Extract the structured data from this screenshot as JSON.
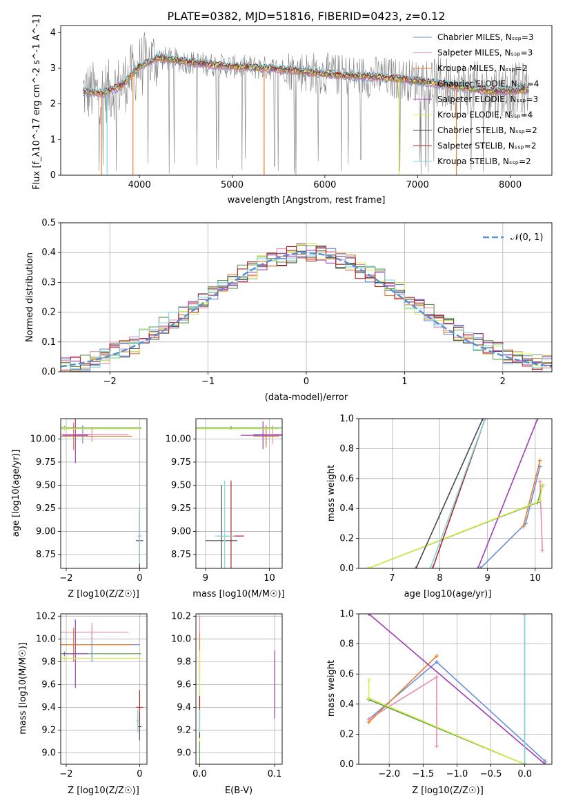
{
  "chart_data": [
    {
      "type": "line",
      "title": "PLATE=0382, MJD=51816, FIBERID=0423, z=0.12",
      "xlabel": "wavelength [Angstrom, rest frame]",
      "ylabel": "Flux [f_λ10^-17 erg cm^-2 s^-1 A^-1]",
      "xlim": [
        3150,
        8450
      ],
      "ylim": [
        0,
        4.2
      ],
      "xticks": [
        4000,
        5000,
        6000,
        7000,
        8000
      ],
      "yticks": [
        0,
        1,
        2,
        3,
        4
      ],
      "legend_position": "right",
      "series": [
        {
          "name": "Chabrier MILES, N_SSP=3",
          "color": "#6a8fd8"
        },
        {
          "name": "Salpeter MILES, N_SSP=3",
          "color": "#e88bb0"
        },
        {
          "name": "Kroupa MILES, N_SSP=2",
          "color": "#e8812f"
        },
        {
          "name": "Chabrier ELODIE, N_SSP=4",
          "color": "#5c9e4e"
        },
        {
          "name": "Salpeter ELODIE, N_SSP=3",
          "color": "#9e3bb5"
        },
        {
          "name": "Kroupa ELODIE, N_SSP=4",
          "color": "#d8ee4a"
        },
        {
          "name": "Chabrier STELIB, N_SSP=2",
          "color": "#4a4a4a"
        },
        {
          "name": "Salpeter STELIB, N_SSP=2",
          "color": "#b22424"
        },
        {
          "name": "Kroupa STELIB, N_SSP=2",
          "color": "#7fd8e0"
        }
      ],
      "continuum": {
        "x": [
          3400,
          3600,
          3800,
          4000,
          4200,
          4600,
          5000,
          5400,
          5800,
          6200,
          6600,
          7000,
          7400,
          7800,
          8200
        ],
        "y": [
          2.35,
          2.3,
          2.5,
          3.05,
          3.3,
          3.15,
          3.05,
          3.0,
          2.9,
          2.8,
          2.75,
          2.65,
          2.5,
          2.35,
          2.4
        ]
      }
    },
    {
      "type": "histogram",
      "xlabel": "(data-model)/error",
      "ylabel": "Normed distribution",
      "xlim": [
        -2.5,
        2.5
      ],
      "ylim": [
        0,
        0.5
      ],
      "xticks": [
        -2,
        -1,
        0,
        1,
        2
      ],
      "yticks": [
        0,
        0.1,
        0.2,
        0.3,
        0.4,
        0.5
      ],
      "legend": "𝒩(0, 1)",
      "bin_width": 0.1,
      "values_approx": [
        0.02,
        0.025,
        0.03,
        0.035,
        0.04,
        0.05,
        0.055,
        0.07,
        0.075,
        0.09,
        0.1,
        0.115,
        0.13,
        0.14,
        0.155,
        0.175,
        0.19,
        0.205,
        0.215,
        0.235,
        0.255,
        0.27,
        0.29,
        0.3,
        0.315,
        0.33,
        0.34,
        0.355,
        0.365,
        0.375,
        0.385,
        0.39,
        0.395,
        0.4,
        0.4,
        0.4,
        0.395,
        0.39,
        0.385,
        0.375,
        0.365,
        0.355,
        0.34,
        0.33,
        0.315,
        0.3,
        0.285,
        0.27,
        0.255,
        0.235,
        0.215,
        0.2,
        0.185,
        0.17,
        0.155,
        0.14,
        0.13,
        0.115,
        0.1,
        0.09,
        0.08,
        0.07,
        0.06,
        0.05,
        0.045,
        0.04,
        0.035,
        0.03,
        0.028,
        0.025
      ]
    },
    {
      "type": "scatter",
      "xlabel": "Z [log10(Z/Z☉)]",
      "ylabel": "age  [log10(age/yr)]",
      "xlim": [
        -2.15,
        0.2
      ],
      "ylim": [
        8.6,
        10.22
      ],
      "xticks": [
        -2,
        0
      ],
      "yticks": [
        8.75,
        9.0,
        9.25,
        9.5,
        9.75,
        10.0
      ]
    },
    {
      "type": "scatter",
      "xlabel": "mass [log10(M/M☉)]",
      "ylabel": "",
      "xlim": [
        8.85,
        10.2
      ],
      "ylim": [
        8.6,
        10.22
      ],
      "xticks": [
        9,
        10
      ],
      "yticks": [
        8.75,
        9.0,
        9.25,
        9.5,
        9.75,
        10.0
      ]
    },
    {
      "type": "line",
      "xlabel": "age  [log10(age/yr)]",
      "ylabel": "mass weight",
      "xlim": [
        6.3,
        10.35
      ],
      "ylim": [
        0,
        1
      ],
      "xticks": [
        7,
        8,
        9,
        10
      ],
      "yticks": [
        0.0,
        0.2,
        0.4,
        0.6,
        0.8,
        1.0
      ]
    },
    {
      "type": "scatter",
      "xlabel": "Z [log10(Z/Z☉)]",
      "ylabel": "mass [log10(M/M☉)]",
      "xlim": [
        -2.15,
        0.2
      ],
      "ylim": [
        8.9,
        10.22
      ],
      "xticks": [
        -2,
        0
      ],
      "yticks": [
        9.0,
        9.2,
        9.4,
        9.6,
        9.8,
        10.0,
        10.2
      ]
    },
    {
      "type": "scatter",
      "xlabel": "E(B-V)",
      "ylabel": "",
      "xlim": [
        -0.005,
        0.11
      ],
      "ylim": [
        8.9,
        10.22
      ],
      "xticks": [
        0.0,
        0.1
      ],
      "yticks": [
        9.0,
        9.2,
        9.4,
        9.6,
        9.8,
        10.0,
        10.2
      ]
    },
    {
      "type": "line",
      "xlabel": "Z [log10(Z/Z☉)]",
      "ylabel": "mass weight",
      "xlim": [
        -2.45,
        0.4
      ],
      "ylim": [
        0,
        1
      ],
      "xticks": [
        -2.0,
        -1.5,
        -1.0,
        -0.5,
        0.0
      ],
      "yticks": [
        0.0,
        0.2,
        0.4,
        0.6,
        0.8,
        1.0
      ]
    }
  ],
  "models": [
    {
      "color": "#6a8fd8",
      "age_w": [
        [
          8.85,
          0.0
        ],
        [
          9.8,
          0.3
        ],
        [
          10.1,
          0.68
        ]
      ],
      "Z_w": [
        [
          -2.3,
          0.3
        ],
        [
          -1.3,
          0.68
        ],
        [
          0.3,
          0.02
        ]
      ],
      "Zage": [
        [
          -1.55,
          10.05,
          0.25,
          0.1
        ]
      ],
      "massage": [
        [
          9.95,
          10.05,
          0.2,
          0.1
        ]
      ],
      "Zmass": [
        [
          -1.3,
          9.95,
          1.3,
          0.15
        ]
      ],
      "ebv": [
        [
          0.0,
          9.6,
          0.2
        ]
      ]
    },
    {
      "color": "#e88bb0",
      "age_w": [
        [
          10.1,
          0.58
        ],
        [
          10.15,
          0.12
        ]
      ],
      "Z_w": [
        [
          -2.3,
          0.3
        ],
        [
          -1.3,
          0.58
        ],
        [
          -1.3,
          0.12
        ]
      ],
      "Zage": [
        [
          -1.3,
          10.05,
          1.0,
          0.08
        ]
      ],
      "massage": [
        [
          10.05,
          10.05,
          0.15,
          0.1
        ]
      ],
      "Zmass": [
        [
          -1.3,
          10.06,
          1.0,
          0.08
        ]
      ],
      "ebv": [
        [
          0.0,
          9.9,
          0.3
        ]
      ]
    },
    {
      "color": "#e8812f",
      "age_w": [
        [
          9.75,
          0.28
        ],
        [
          10.1,
          0.72
        ]
      ],
      "Z_w": [
        [
          -2.3,
          0.28
        ],
        [
          -1.3,
          0.72
        ]
      ],
      "Zage": [
        [
          -1.8,
          10.03,
          1.6,
          0.15
        ]
      ],
      "massage": [
        [
          9.95,
          10.03,
          0.2,
          0.12
        ]
      ],
      "Zmass": [
        [
          -1.8,
          9.95,
          1.6,
          0.15
        ]
      ],
      "ebv": [
        [
          0.0,
          9.85,
          0.2
        ]
      ]
    },
    {
      "color": "#5c9e4e",
      "age_w": [
        [
          6.5,
          0.0
        ],
        [
          10.05,
          0.44
        ],
        [
          10.15,
          0.55
        ]
      ],
      "Z_w": [
        [
          -2.3,
          0.43
        ],
        [
          0.0,
          0.0
        ]
      ],
      "Zage": [
        [
          -2.05,
          10.12,
          2.1,
          0.02
        ]
      ],
      "massage": [
        [
          9.4,
          10.12,
          0.8,
          0.02
        ]
      ],
      "Zmass": [
        [
          -2.05,
          9.87,
          2.1,
          0.02
        ]
      ],
      "ebv": [
        [
          0.0,
          9.2,
          0.35
        ]
      ]
    },
    {
      "color": "#9e3bb5",
      "age_w": [
        [
          8.8,
          0.0
        ],
        [
          10.05,
          1.0
        ]
      ],
      "Z_w": [
        [
          -2.3,
          1.0
        ],
        [
          0.3,
          0.0
        ]
      ],
      "Zage": [
        [
          -1.75,
          10.04,
          0.35,
          0.3
        ]
      ],
      "massage": [
        [
          9.9,
          10.04,
          0.35,
          0.15
        ]
      ],
      "Zmass": [
        [
          -1.75,
          9.87,
          0.35,
          0.3
        ]
      ],
      "ebv": [
        [
          0.1,
          9.6,
          0.3
        ]
      ]
    },
    {
      "color": "#d8ee4a",
      "age_w": [
        [
          6.5,
          0.0
        ],
        [
          10.1,
          0.45
        ],
        [
          10.15,
          0.56
        ]
      ],
      "Z_w": [
        [
          -2.3,
          0.56
        ],
        [
          -2.3,
          0.44
        ],
        [
          0.0,
          0.0
        ]
      ],
      "Zage": [
        [
          -2.05,
          10.11,
          2.1,
          0.02
        ]
      ],
      "massage": [
        [
          9.45,
          10.11,
          0.7,
          0.02
        ]
      ],
      "Zmass": [
        [
          -2.05,
          9.83,
          2.1,
          0.02
        ]
      ],
      "ebv": [
        [
          0.0,
          9.5,
          0.4
        ]
      ]
    },
    {
      "color": "#4a4a4a",
      "age_w": [
        [
          7.5,
          0.0
        ],
        [
          8.9,
          1.0
        ]
      ],
      "Z_w": [
        [
          0.0,
          0.0
        ],
        [
          0.0,
          1.0
        ]
      ],
      "Zage": [
        [
          0.0,
          8.9,
          0.1,
          0.3
        ]
      ],
      "massage": [
        [
          9.25,
          8.9,
          0.25,
          0.6
        ]
      ],
      "Zmass": [
        [
          0.0,
          9.23,
          0.05,
          0.12
        ]
      ],
      "ebv": [
        [
          0.0,
          9.23,
          0.1
        ]
      ]
    },
    {
      "color": "#b22424",
      "age_w": [
        [
          7.85,
          0.0
        ],
        [
          8.95,
          1.0
        ]
      ],
      "Z_w": [
        [
          0.0,
          0.0
        ],
        [
          0.0,
          1.0
        ]
      ],
      "Zage": [
        [
          0.0,
          8.95,
          0.05,
          0.3
        ]
      ],
      "massage": [
        [
          9.4,
          8.95,
          0.2,
          0.6
        ]
      ],
      "Zmass": [
        [
          0.0,
          9.4,
          0.1,
          0.15
        ]
      ],
      "ebv": [
        [
          0.0,
          9.4,
          0.1
        ]
      ]
    },
    {
      "color": "#7fd8e0",
      "age_w": [
        [
          7.8,
          0.0
        ],
        [
          8.95,
          1.0
        ]
      ],
      "Z_w": [
        [
          0.0,
          0.0
        ],
        [
          0.0,
          1.0
        ]
      ],
      "Zage": [
        [
          0.0,
          8.95,
          0.05,
          0.3
        ]
      ],
      "massage": [
        [
          9.3,
          8.95,
          0.15,
          0.6
        ]
      ],
      "Zmass": [
        [
          -0.05,
          9.28,
          0.05,
          0.1
        ]
      ],
      "ebv": [
        [
          0.0,
          9.28,
          0.1
        ]
      ]
    }
  ]
}
